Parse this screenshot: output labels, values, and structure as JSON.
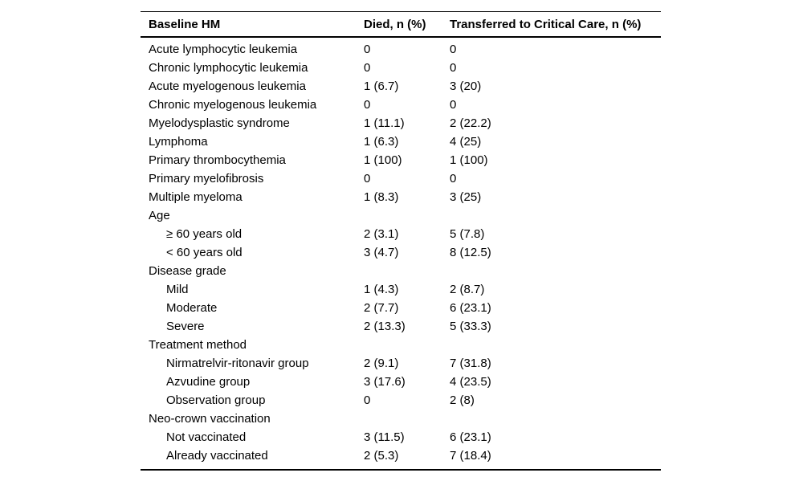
{
  "page": {
    "background": "#ffffff",
    "text_color": "#000000",
    "rule_color": "#000000"
  },
  "table": {
    "columns": [
      {
        "label": "Baseline HM"
      },
      {
        "label": "Died, n (%)"
      },
      {
        "label": "Transferred to Critical Care, n (%)"
      }
    ],
    "rows": [
      {
        "label": "Acute lymphocytic leukemia",
        "indent": false,
        "died": "0",
        "transferred": "0"
      },
      {
        "label": "Chronic lymphocytic leukemia",
        "indent": false,
        "died": "0",
        "transferred": "0"
      },
      {
        "label": "Acute myelogenous leukemia",
        "indent": false,
        "died": "1 (6.7)",
        "transferred": "3 (20)"
      },
      {
        "label": "Chronic myelogenous leukemia",
        "indent": false,
        "died": "0",
        "transferred": "0"
      },
      {
        "label": "Myelodysplastic syndrome",
        "indent": false,
        "died": "1 (11.1)",
        "transferred": "2 (22.2)"
      },
      {
        "label": "Lymphoma",
        "indent": false,
        "died": "1 (6.3)",
        "transferred": "4 (25)"
      },
      {
        "label": "Primary thrombocythemia",
        "indent": false,
        "died": "1 (100)",
        "transferred": "1 (100)"
      },
      {
        "label": "Primary myelofibrosis",
        "indent": false,
        "died": "0",
        "transferred": "0"
      },
      {
        "label": "Multiple myeloma",
        "indent": false,
        "died": "1 (8.3)",
        "transferred": "3 (25)"
      },
      {
        "label": "Age",
        "indent": false,
        "died": "",
        "transferred": ""
      },
      {
        "label": "≥ 60 years old",
        "indent": true,
        "died": "2 (3.1)",
        "transferred": "5 (7.8)"
      },
      {
        "label": "< 60 years old",
        "indent": true,
        "died": "3 (4.7)",
        "transferred": "8 (12.5)"
      },
      {
        "label": "Disease grade",
        "indent": false,
        "died": "",
        "transferred": ""
      },
      {
        "label": "Mild",
        "indent": true,
        "died": "1 (4.3)",
        "transferred": "2 (8.7)"
      },
      {
        "label": "Moderate",
        "indent": true,
        "died": "2 (7.7)",
        "transferred": "6 (23.1)"
      },
      {
        "label": "Severe",
        "indent": true,
        "died": "2 (13.3)",
        "transferred": "5 (33.3)"
      },
      {
        "label": "Treatment method",
        "indent": false,
        "died": "",
        "transferred": ""
      },
      {
        "label": "Nirmatrelvir-ritonavir group",
        "indent": true,
        "died": "2 (9.1)",
        "transferred": "7 (31.8)"
      },
      {
        "label": "Azvudine group",
        "indent": true,
        "died": "3 (17.6)",
        "transferred": "4 (23.5)"
      },
      {
        "label": "Observation group",
        "indent": true,
        "died": "0",
        "transferred": "2 (8)"
      },
      {
        "label": "Neo-crown vaccination",
        "indent": false,
        "died": "",
        "transferred": ""
      },
      {
        "label": "Not vaccinated",
        "indent": true,
        "died": "3 (11.5)",
        "transferred": "6 (23.1)"
      },
      {
        "label": "Already vaccinated",
        "indent": true,
        "died": "2 (5.3)",
        "transferred": "7 (18.4)"
      }
    ]
  }
}
